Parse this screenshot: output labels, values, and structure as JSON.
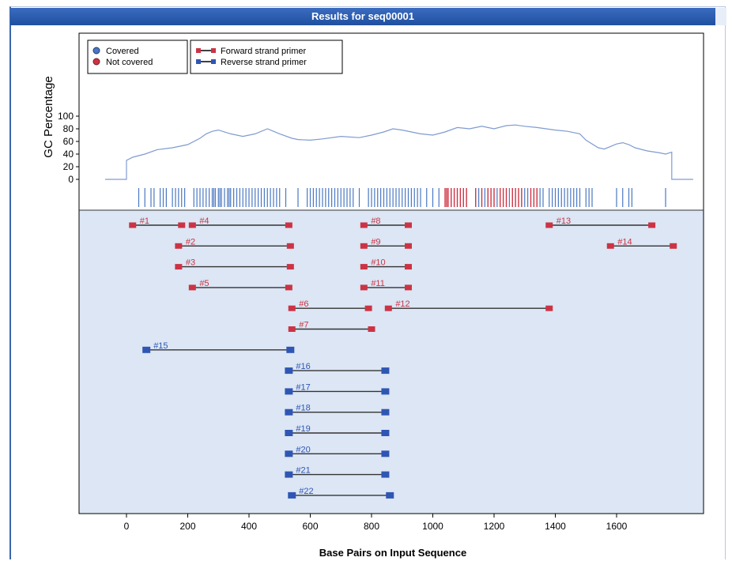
{
  "window": {
    "title": "Results for seq00001"
  },
  "colors": {
    "covered": "#4a78c2",
    "not_covered": "#cc3344",
    "forward": "#cc3344",
    "reverse": "#2f56b4",
    "line": "#7f9bd0",
    "lower_bg": "#dce6f4"
  },
  "chart_data": {
    "type": "line",
    "ylabel": "GC Percentage",
    "xlabel": "Base Pairs on Input Sequence",
    "xlim": [
      -100,
      1900
    ],
    "ylim": [
      -10,
      110
    ],
    "xticks": [
      0,
      200,
      400,
      600,
      800,
      1000,
      1200,
      1400,
      1600
    ],
    "yticks": [
      0,
      20,
      40,
      60,
      80,
      100
    ],
    "grid": false,
    "legend": [
      {
        "label": "Covered",
        "marker": "dot",
        "color": "#4a78c2"
      },
      {
        "label": "Not covered",
        "marker": "dot",
        "color": "#cc3344"
      },
      {
        "label": "Forward strand primer",
        "marker": "bar",
        "color": "#cc3344"
      },
      {
        "label": "Reverse strand primer",
        "marker": "bar",
        "color": "#2f56b4"
      }
    ],
    "gc_series": {
      "x": [
        -70,
        0,
        0,
        20,
        60,
        100,
        150,
        200,
        240,
        260,
        280,
        300,
        340,
        380,
        420,
        460,
        480,
        500,
        540,
        560,
        600,
        640,
        700,
        760,
        800,
        840,
        870,
        900,
        960,
        1000,
        1040,
        1080,
        1120,
        1160,
        1200,
        1240,
        1270,
        1300,
        1340,
        1400,
        1440,
        1480,
        1500,
        1540,
        1560,
        1580,
        1600,
        1620,
        1640,
        1660,
        1700,
        1740,
        1760,
        1780,
        1780,
        1850
      ],
      "y": [
        0,
        0,
        30,
        35,
        40,
        47,
        50,
        55,
        65,
        72,
        76,
        78,
        72,
        68,
        72,
        80,
        76,
        72,
        65,
        63,
        62,
        64,
        68,
        66,
        70,
        75,
        80,
        78,
        72,
        70,
        75,
        82,
        80,
        84,
        80,
        85,
        86,
        84,
        82,
        78,
        76,
        72,
        62,
        50,
        48,
        52,
        56,
        58,
        55,
        50,
        45,
        42,
        40,
        43,
        0,
        0
      ]
    },
    "covered_marks": [
      40,
      60,
      80,
      90,
      110,
      120,
      130,
      150,
      160,
      170,
      180,
      190,
      220,
      230,
      240,
      250,
      260,
      270,
      280,
      285,
      290,
      300,
      305,
      310,
      320,
      330,
      335,
      340,
      350,
      360,
      370,
      380,
      390,
      400,
      410,
      420,
      430,
      440,
      450,
      460,
      470,
      480,
      490,
      500,
      520,
      560,
      590,
      600,
      610,
      620,
      630,
      640,
      650,
      660,
      670,
      680,
      690,
      700,
      710,
      720,
      730,
      740,
      760,
      790,
      800,
      810,
      820,
      830,
      840,
      850,
      860,
      870,
      880,
      890,
      900,
      910,
      920,
      930,
      940,
      950,
      960,
      980,
      1000,
      1020,
      1150,
      1170,
      1210,
      1250,
      1300,
      1310,
      1350,
      1360,
      1380,
      1390,
      1400,
      1410,
      1420,
      1430,
      1440,
      1450,
      1460,
      1470,
      1480,
      1500,
      1510,
      1520,
      1600,
      1620,
      1640,
      1650,
      1760
    ],
    "not_covered_marks": [
      1040,
      1045,
      1050,
      1060,
      1070,
      1080,
      1090,
      1100,
      1110,
      1140,
      1160,
      1180,
      1190,
      1200,
      1220,
      1230,
      1240,
      1260,
      1270,
      1280,
      1290,
      1320,
      1330,
      1340
    ],
    "primer_pairs": [
      {
        "id": "#1",
        "start": 20,
        "end": 180,
        "strand": "forward",
        "row": 0
      },
      {
        "id": "#4",
        "start": 215,
        "end": 530,
        "strand": "forward",
        "row": 0
      },
      {
        "id": "#8",
        "start": 775,
        "end": 920,
        "strand": "forward",
        "row": 0
      },
      {
        "id": "#13",
        "start": 1380,
        "end": 1715,
        "strand": "forward",
        "row": 0
      },
      {
        "id": "#2",
        "start": 170,
        "end": 535,
        "strand": "forward",
        "row": 1
      },
      {
        "id": "#9",
        "start": 775,
        "end": 920,
        "strand": "forward",
        "row": 1
      },
      {
        "id": "#14",
        "start": 1580,
        "end": 1785,
        "strand": "forward",
        "row": 1
      },
      {
        "id": "#3",
        "start": 170,
        "end": 535,
        "strand": "forward",
        "row": 2
      },
      {
        "id": "#10",
        "start": 775,
        "end": 920,
        "strand": "forward",
        "row": 2
      },
      {
        "id": "#5",
        "start": 215,
        "end": 530,
        "strand": "forward",
        "row": 3
      },
      {
        "id": "#11",
        "start": 775,
        "end": 920,
        "strand": "forward",
        "row": 3
      },
      {
        "id": "#6",
        "start": 540,
        "end": 790,
        "strand": "forward",
        "row": 4
      },
      {
        "id": "#12",
        "start": 855,
        "end": 1380,
        "strand": "forward",
        "row": 4
      },
      {
        "id": "#7",
        "start": 540,
        "end": 800,
        "strand": "forward",
        "row": 5
      },
      {
        "id": "#15",
        "start": 65,
        "end": 535,
        "strand": "reverse",
        "row": 6
      },
      {
        "id": "#16",
        "start": 530,
        "end": 845,
        "strand": "reverse",
        "row": 7
      },
      {
        "id": "#17",
        "start": 530,
        "end": 845,
        "strand": "reverse",
        "row": 8
      },
      {
        "id": "#18",
        "start": 530,
        "end": 845,
        "strand": "reverse",
        "row": 9
      },
      {
        "id": "#19",
        "start": 530,
        "end": 845,
        "strand": "reverse",
        "row": 10
      },
      {
        "id": "#20",
        "start": 530,
        "end": 845,
        "strand": "reverse",
        "row": 11
      },
      {
        "id": "#21",
        "start": 530,
        "end": 845,
        "strand": "reverse",
        "row": 12
      },
      {
        "id": "#22",
        "start": 540,
        "end": 860,
        "strand": "reverse",
        "row": 13
      }
    ]
  }
}
